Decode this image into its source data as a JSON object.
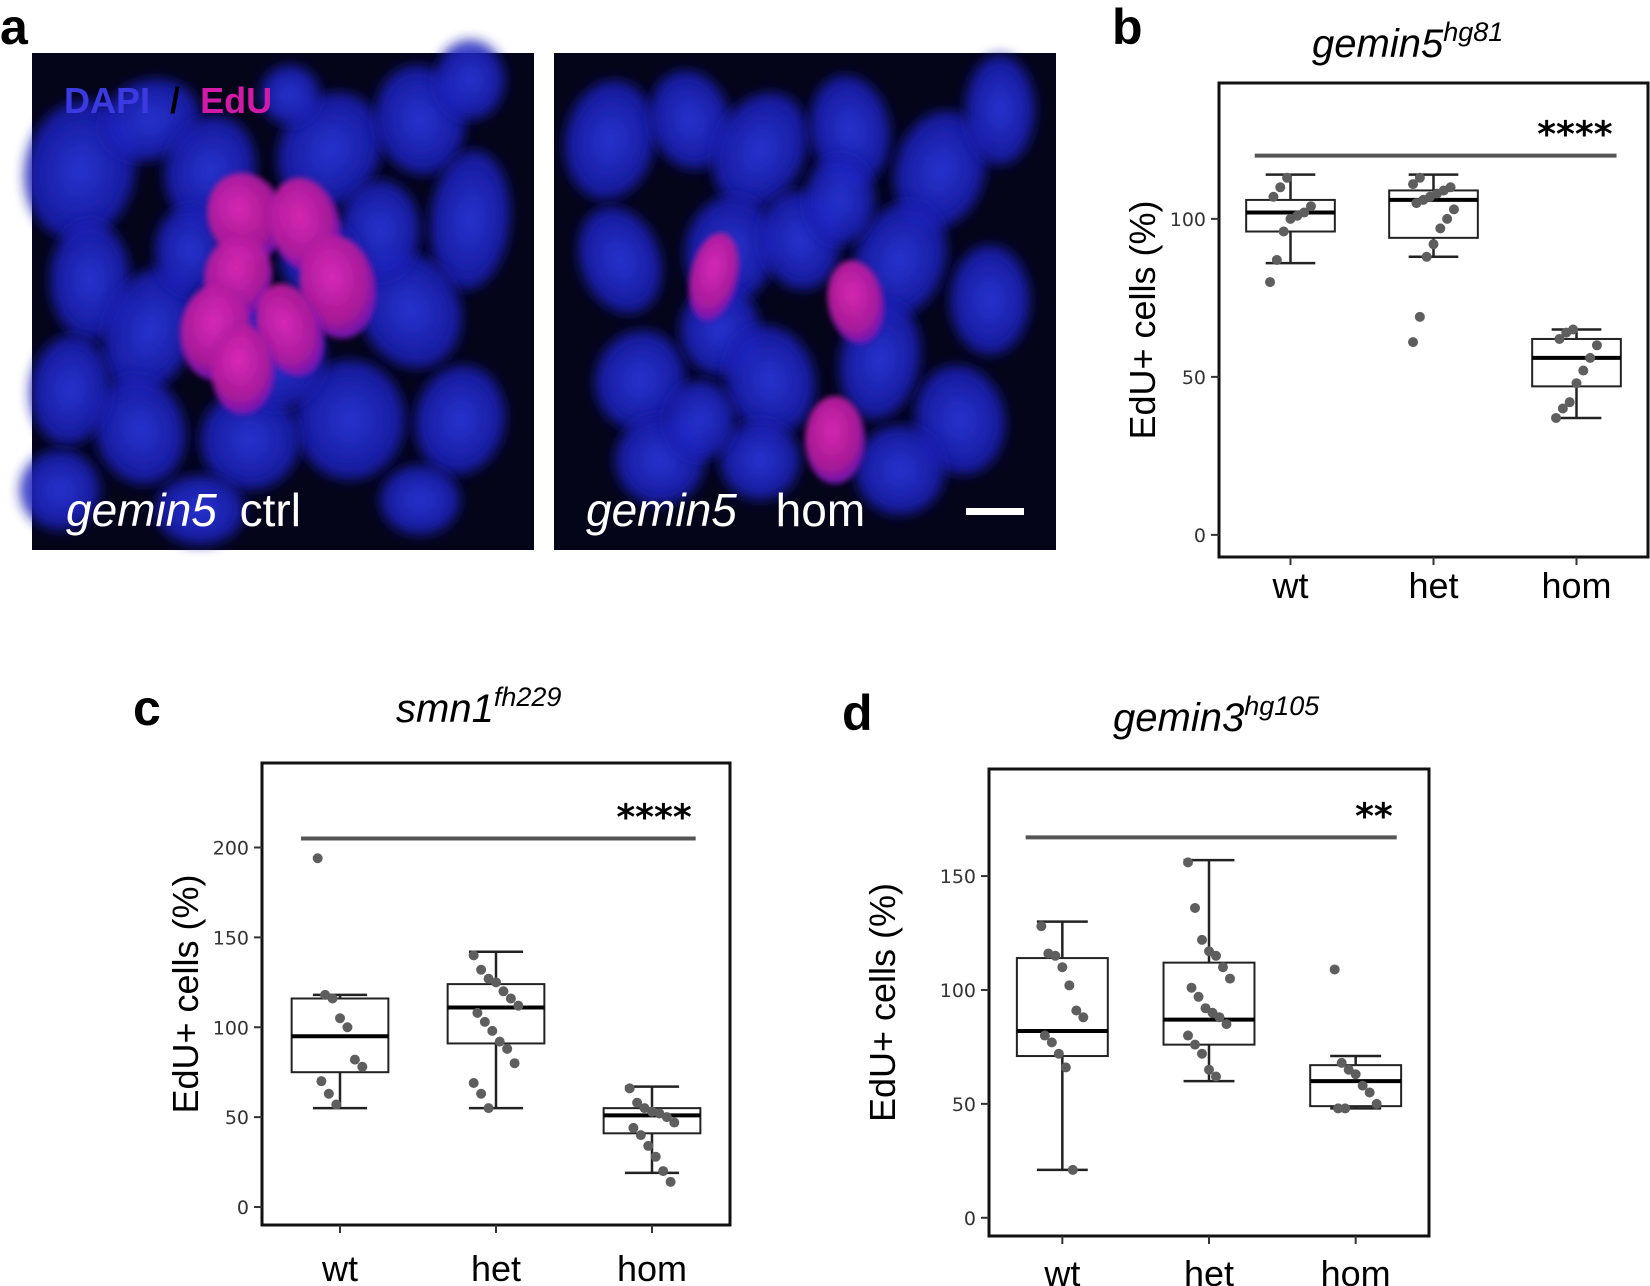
{
  "micrograph": {
    "panel": "a",
    "legend": {
      "dapi": "DAPI",
      "sep": "/",
      "edu": "EdU"
    },
    "dapi_color": "#3a3ae0",
    "edu_color": "#d21aa8",
    "images": [
      {
        "gene": "gemin5",
        "condition": "ctrl",
        "edu_nuclei": 6
      },
      {
        "gene": "gemin5",
        "condition": "hom",
        "edu_nuclei": 3
      }
    ]
  },
  "chart_data": [
    {
      "panel": "b",
      "type": "box",
      "title_gene": "gemin5",
      "title_allele": "hg81",
      "ylabel": "EdU+ cells (%)",
      "ylim": [
        -7,
        143
      ],
      "yticks": [
        0,
        50,
        100
      ],
      "categories": [
        "wt",
        "het",
        "hom"
      ],
      "boxes": [
        {
          "min": 86,
          "q1": 96,
          "median": 102,
          "q3": 106,
          "max": 114
        },
        {
          "min": 88,
          "q1": 94,
          "median": 106,
          "q3": 109,
          "max": 114
        },
        {
          "min": 37,
          "q1": 47,
          "median": 56,
          "q3": 62,
          "max": 65
        }
      ],
      "points": [
        [
          80,
          87,
          96,
          100,
          101,
          102,
          104,
          107,
          110,
          113
        ],
        [
          61,
          69,
          88,
          92,
          97,
          100,
          103,
          105,
          106,
          107,
          108,
          109,
          110,
          111,
          113
        ],
        [
          37,
          40,
          42,
          48,
          52,
          56,
          60,
          62,
          64,
          65
        ]
      ],
      "significance": "****",
      "sig_y": 120
    },
    {
      "panel": "c",
      "type": "box",
      "title_gene": "smn1",
      "title_allele": "fh229",
      "ylabel": "EdU+ cells (%)",
      "ylim": [
        -10,
        247
      ],
      "yticks": [
        0,
        50,
        100,
        150,
        200
      ],
      "categories": [
        "wt",
        "het",
        "hom"
      ],
      "boxes": [
        {
          "min": 55,
          "q1": 75,
          "median": 95,
          "q3": 116,
          "max": 118
        },
        {
          "min": 55,
          "q1": 91,
          "median": 111,
          "q3": 124,
          "max": 142
        },
        {
          "min": 19,
          "q1": 41,
          "median": 51,
          "q3": 55,
          "max": 67
        }
      ],
      "points": [
        [
          194,
          118,
          116,
          105,
          100,
          82,
          78,
          70,
          63,
          57
        ],
        [
          140,
          132,
          127,
          125,
          120,
          116,
          112,
          108,
          103,
          98,
          92,
          88,
          80,
          69,
          63,
          55
        ],
        [
          66,
          58,
          55,
          53,
          52,
          50,
          47,
          44,
          40,
          34,
          28,
          20,
          14
        ]
      ],
      "significance": "****",
      "sig_y": 205
    },
    {
      "panel": "d",
      "type": "box",
      "title_gene": "gemin3",
      "title_allele": "hg105",
      "ylabel": "EdU+ cells (%)",
      "ylim": [
        -8,
        197
      ],
      "yticks": [
        0,
        50,
        100,
        150
      ],
      "categories": [
        "wt",
        "het",
        "hom"
      ],
      "boxes": [
        {
          "min": 21,
          "q1": 71,
          "median": 82,
          "q3": 114,
          "max": 130
        },
        {
          "min": 60,
          "q1": 76,
          "median": 87,
          "q3": 112,
          "max": 157
        },
        {
          "min": 48,
          "q1": 49,
          "median": 60,
          "q3": 67,
          "max": 71
        }
      ],
      "points": [
        [
          128,
          116,
          115,
          110,
          102,
          91,
          88,
          80,
          77,
          72,
          66,
          21
        ],
        [
          156,
          136,
          122,
          117,
          115,
          110,
          105,
          101,
          97,
          92,
          90,
          88,
          85,
          80,
          76,
          72,
          65,
          62
        ],
        [
          109,
          68,
          65,
          63,
          58,
          55,
          50,
          48,
          48
        ]
      ],
      "significance": "**",
      "sig_y": 167
    }
  ]
}
